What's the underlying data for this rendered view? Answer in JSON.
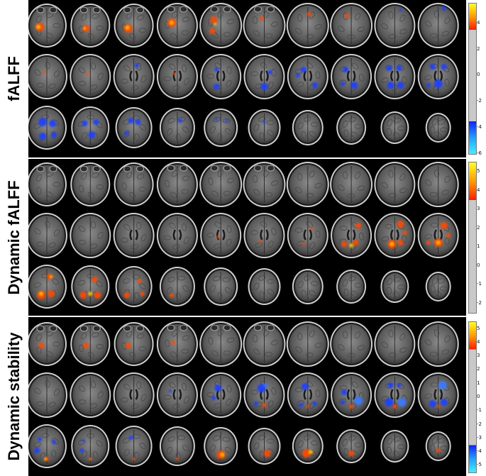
{
  "panels": [
    {
      "label": "fALFF",
      "colorbar": {
        "ticks": [
          "4",
          "2",
          "0",
          "-2",
          "-4",
          "-6"
        ],
        "range": [
          -6,
          5.5
        ],
        "pos_threshold": 3.5,
        "neg_threshold": -3.5
      },
      "overlay": {
        "positive_color": "#ff5a00",
        "negative_color": "#1e50ff"
      }
    },
    {
      "label": "Dynamic fALFF",
      "colorbar": {
        "ticks": [
          "5",
          "4",
          "3",
          "2",
          "1",
          "0",
          "-1",
          "-2"
        ],
        "range": [
          -2.5,
          5.5
        ],
        "pos_threshold": 3.5,
        "neg_threshold": null
      },
      "overlay": {
        "positive_color": "#ff5a00",
        "negative_color": null
      }
    },
    {
      "label": "Dynamic stability",
      "colorbar": {
        "ticks": [
          "5",
          "4",
          "3",
          "2",
          "1",
          "0",
          "-1",
          "-2",
          "-3",
          "-4",
          "-5"
        ],
        "range": [
          -5.5,
          5.5
        ],
        "pos_threshold": 3.5,
        "neg_threshold": -3.5
      },
      "overlay": {
        "positive_color": "#ff5a00",
        "negative_color": "#1e50ff"
      }
    }
  ]
}
